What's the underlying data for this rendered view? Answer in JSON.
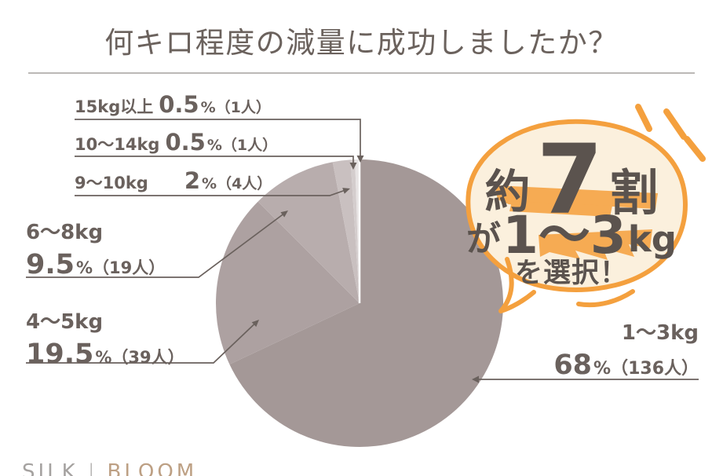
{
  "title": {
    "text": "何キロ程度の減量に成功しましたか？"
  },
  "chart_data": {
    "type": "pie",
    "title": "何キロ程度の減量に成功しましたか？",
    "categories": [
      "1〜3kg",
      "4〜5kg",
      "6〜8kg",
      "9〜10kg",
      "10〜14kg",
      "15kg以上"
    ],
    "values": [
      68,
      19.5,
      9.5,
      2,
      0.5,
      0.5
    ],
    "counts": [
      136,
      39,
      19,
      4,
      1,
      1
    ],
    "value_unit": "%",
    "count_unit": "人",
    "colors": [
      "#A49897",
      "#ADA1A1",
      "#B8ADAD",
      "#C9C0C0",
      "#D4CDCD",
      "#E7E3E3"
    ],
    "start_angle": "12-oclock",
    "direction": "clockwise",
    "legend_position": "callout-labels",
    "annotation": "約7割が1〜3kgを選択！"
  },
  "callouts": [
    {
      "label": "15kg以上",
      "value": "0.5",
      "detail": "%（1人）"
    },
    {
      "label": "10〜14kg",
      "value": "0.5",
      "detail": "%（1人）"
    },
    {
      "label": "9〜10kg",
      "value": "2",
      "detail": "%（4人）"
    },
    {
      "label": "6〜8kg",
      "value": "9.5",
      "detail": "%（19人）"
    },
    {
      "label": "4〜5kg",
      "value": "19.5",
      "detail": "%（39人）"
    },
    {
      "label": "1〜3kg",
      "value": "68",
      "detail": "%（136人）"
    }
  ],
  "bubble": {
    "line1_prefix": "約",
    "line1_big": "7",
    "line1_suffix": "割",
    "line2_prefix": "が",
    "line2_big": "1〜3",
    "line2_unit": "kg",
    "line3": "を選択！"
  },
  "logo": {
    "left": "SILK",
    "separator": "|",
    "right": "BLOOM"
  },
  "colors": {
    "accent_orange": "#F4A03E",
    "bubble_fill": "#FBF0DD",
    "highlight": "#F6AB53",
    "bubble_text": "#5B534E",
    "label_text": "#6A615D",
    "title_text": "#6B625D",
    "divider": "#BBB8B6",
    "logo_silk": "#A5A2A0",
    "logo_bloom": "#BDA084"
  }
}
